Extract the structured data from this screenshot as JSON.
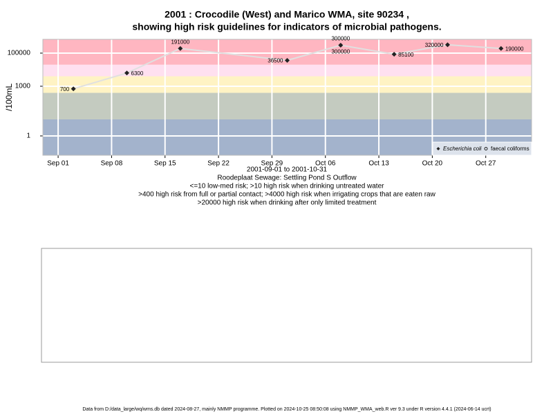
{
  "chart_data": {
    "type": "line",
    "title": "2001 : Crocodile (West) and Marico WMA, site 90234 ,",
    "title_line2": "showing high risk guidelines for indicators of microbial pathogens.",
    "subtitle_lines": [
      "2001-09-01 to 2001-10-31",
      "Roodeplaat Sewage: Settling Pond S Outflow",
      "<=10 low-med risk; >10 high risk when drinking untreated water",
      ">400 high risk from full or partial contact; >4000 high risk when irrigating crops that are eaten raw",
      ">20000 high risk when drinking after only limited treatment"
    ],
    "y_label": "/100mL",
    "log_y": true,
    "grid": true,
    "legend_position": "bottom-right",
    "xlim": [
      "2001-08-30",
      "2001-11-02"
    ],
    "xticks": [
      {
        "value": "2001-09-01",
        "label": "Sep 01"
      },
      {
        "value": "2001-09-08",
        "label": "Sep 08"
      },
      {
        "value": "2001-09-15",
        "label": "Sep 15"
      },
      {
        "value": "2001-09-22",
        "label": "Sep 22"
      },
      {
        "value": "2001-09-29",
        "label": "Sep 29"
      },
      {
        "value": "2001-10-06",
        "label": "Oct 06"
      },
      {
        "value": "2001-10-13",
        "label": "Oct 13"
      },
      {
        "value": "2001-10-20",
        "label": "Oct 20"
      },
      {
        "value": "2001-10-27",
        "label": "Oct 27"
      }
    ],
    "ylim": [
      0.068,
      680000
    ],
    "yticks": [
      1,
      1000,
      100000
    ],
    "risk_bands": [
      {
        "to": 10,
        "color": "#a3b3cc"
      },
      {
        "to": 400,
        "color": "#c4cbc0"
      },
      {
        "to": 4000,
        "color": "#fff3c4"
      },
      {
        "to": 20000,
        "color": "#ffe0f0"
      },
      {
        "to": 680000,
        "color": "#ffb6c1"
      }
    ],
    "x": [
      "2001-09-03",
      "2001-09-10",
      "2001-09-17",
      "2001-10-01",
      "2001-10-08",
      "2001-10-15",
      "2001-10-22",
      "2001-10-29"
    ],
    "series": [
      {
        "name": "Escherichia coli",
        "color": "#222222",
        "values": [
          700,
          6300,
          191000,
          36500,
          300000,
          85100,
          320000,
          190000
        ]
      },
      {
        "name": "faecal coliforms",
        "color": "#222222",
        "values": [
          null,
          null,
          null,
          null,
          300000,
          null,
          null,
          null
        ]
      }
    ],
    "footer": "Data from D:/data_large/wq/wms.db dated 2024-08-27, mainly NMMP programme. Plotted on 2024-10-25 08:50:08 using NMMP_WMA_web.R ver 9.3 under R version 4.4.1 (2024-06-14 ucrt)"
  }
}
